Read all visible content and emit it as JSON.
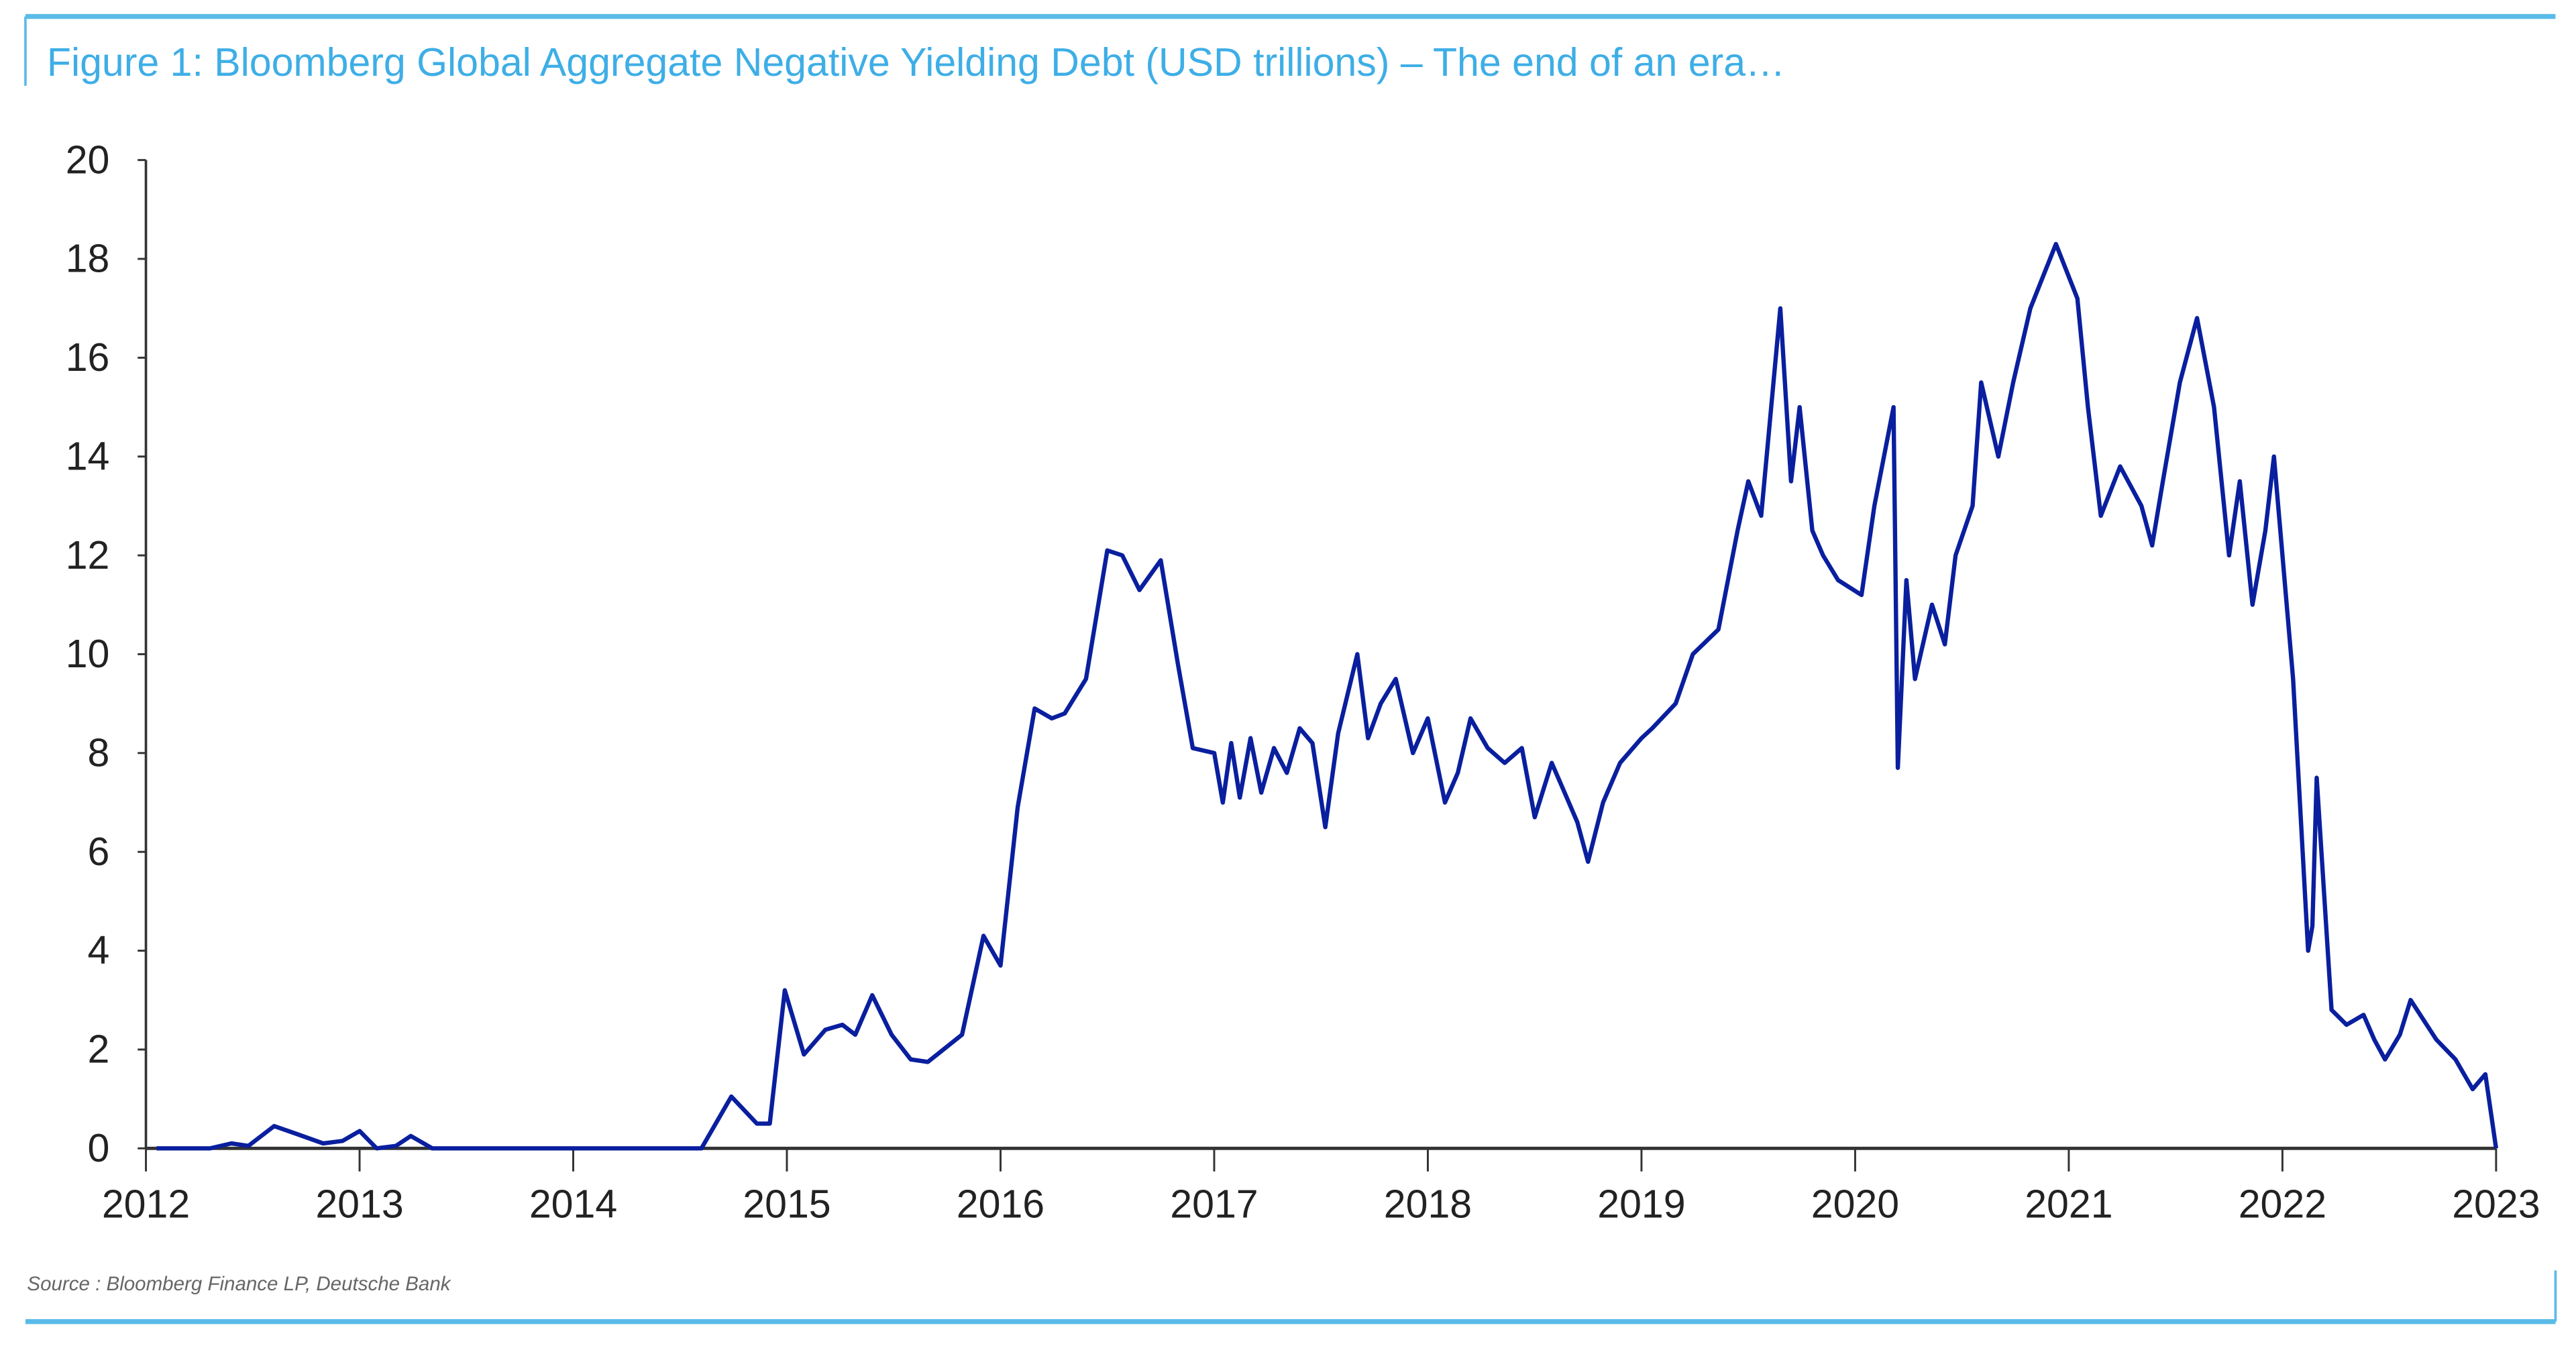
{
  "chart_data": {
    "type": "line",
    "title": "Figure 1: Bloomberg Global Aggregate Negative Yielding Debt (USD trillions) – The end of an era…",
    "source": "Source : Bloomberg Finance LP, Deutsche Bank",
    "xlabel": "",
    "ylabel": "",
    "xlim": [
      2012,
      2023
    ],
    "ylim": [
      0,
      20
    ],
    "x_ticks": [
      "2012",
      "2013",
      "2014",
      "2015",
      "2016",
      "2017",
      "2018",
      "2019",
      "2020",
      "2021",
      "2022",
      "2023"
    ],
    "y_ticks": [
      "0",
      "2",
      "4",
      "6",
      "8",
      "10",
      "12",
      "14",
      "16",
      "18",
      "20"
    ],
    "grid": false,
    "colors": {
      "line": "#0a1f9e",
      "accent": "#3eaee6",
      "axis": "#333333"
    },
    "series": [
      {
        "x": [
          2012.05,
          2012.3,
          2012.4,
          2012.48,
          2012.6,
          2012.7,
          2012.83,
          2012.92,
          2013.0,
          2013.08,
          2013.17,
          2013.24,
          2013.34,
          2013.6,
          2014.0,
          2014.5,
          2014.6,
          2014.74,
          2014.86,
          2014.92,
          2014.99,
          2015.08,
          2015.18,
          2015.26,
          2015.32,
          2015.4,
          2015.49,
          2015.58,
          2015.66,
          2015.82,
          2015.92,
          2016.0,
          2016.08,
          2016.16,
          2016.24,
          2016.3,
          2016.4,
          2016.5,
          2016.57,
          2016.65,
          2016.75,
          2016.83,
          2016.9,
          2017.0,
          2017.04,
          2017.08,
          2017.12,
          2017.17,
          2017.22,
          2017.28,
          2017.34,
          2017.4,
          2017.46,
          2017.52,
          2017.58,
          2017.67,
          2017.72,
          2017.78,
          2017.85,
          2017.93,
          2018.0,
          2018.08,
          2018.14,
          2018.2,
          2018.28,
          2018.36,
          2018.44,
          2018.5,
          2018.58,
          2018.64,
          2018.7,
          2018.75,
          2018.82,
          2018.9,
          2019.0,
          2019.05,
          2019.16,
          2019.24,
          2019.36,
          2019.45,
          2019.5,
          2019.56,
          2019.65,
          2019.7,
          2019.74,
          2019.8,
          2019.85,
          2019.92,
          2020.03,
          2020.09,
          2020.18,
          2020.2,
          2020.24,
          2020.28,
          2020.36,
          2020.42,
          2020.47,
          2020.55,
          2020.59,
          2020.67,
          2020.74,
          2020.82,
          2020.94,
          2021.04,
          2021.09,
          2021.15,
          2021.24,
          2021.34,
          2021.39,
          2021.44,
          2021.52,
          2021.6,
          2021.68,
          2021.75,
          2021.8,
          2021.86,
          2021.92,
          2021.96,
          2022.05,
          2022.12,
          2022.14,
          2022.16,
          2022.23,
          2022.3,
          2022.38,
          2022.43,
          2022.48,
          2022.55,
          2022.6,
          2022.72,
          2022.81,
          2022.89,
          2022.95,
          2023.0
        ],
        "y": [
          0,
          0,
          0.1,
          0.05,
          0.45,
          0.3,
          0.1,
          0.15,
          0.35,
          0,
          0.05,
          0.25,
          0,
          0,
          0,
          0,
          0,
          1.05,
          0.5,
          0.5,
          3.2,
          1.9,
          2.4,
          2.5,
          2.3,
          3.1,
          2.3,
          1.8,
          1.75,
          2.3,
          4.3,
          3.7,
          6.9,
          8.9,
          8.7,
          8.8,
          9.5,
          12.1,
          12.0,
          11.3,
          11.9,
          9.8,
          8.1,
          8.0,
          7.0,
          8.2,
          7.1,
          8.3,
          7.2,
          8.1,
          7.6,
          8.5,
          8.2,
          6.5,
          8.4,
          10.0,
          8.3,
          9.0,
          9.5,
          8.0,
          8.7,
          7.0,
          7.6,
          8.7,
          8.1,
          7.8,
          8.1,
          6.7,
          7.8,
          7.2,
          6.6,
          5.8,
          7.0,
          7.8,
          8.3,
          8.5,
          9.0,
          10.0,
          10.5,
          12.5,
          13.5,
          12.8,
          17.0,
          13.5,
          15.0,
          12.5,
          12.0,
          11.5,
          11.2,
          13.0,
          15.0,
          7.7,
          11.5,
          9.5,
          11.0,
          10.2,
          12.0,
          13.0,
          15.5,
          14.0,
          15.5,
          17.0,
          18.3,
          17.2,
          15.0,
          12.8,
          13.8,
          13.0,
          12.2,
          13.5,
          15.5,
          16.8,
          15.0,
          12.0,
          13.5,
          11.0,
          12.5,
          14.0,
          9.5,
          4.0,
          4.5,
          7.5,
          2.8,
          2.5,
          2.7,
          2.2,
          1.8,
          2.3,
          3.0,
          2.2,
          1.8,
          1.2,
          1.5,
          0
        ]
      }
    ]
  }
}
